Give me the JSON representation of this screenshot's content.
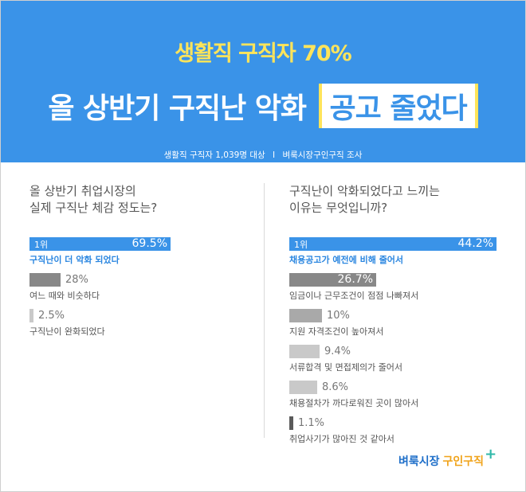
{
  "header": {
    "subtitle": "생활직 구직자 70%",
    "title_main": "올 상반기 구직난 악화",
    "title_highlight": "공고 줄었다",
    "note_left": "생활직 구직자 1,039명 대상",
    "note_sep": "I",
    "note_right": "벼룩시장구인구직 조사"
  },
  "colors": {
    "top_bar": "#3a93e8",
    "dark_bar": "#888888",
    "mid_bar": "#a9a9a9",
    "light_bar": "#c9c9c9",
    "tiny_bar": "#5a5a5a",
    "accent": "#ffe45a"
  },
  "chart_data": [
    {
      "type": "bar",
      "title": "올 상반기 취업시장의 실제 구직난 체감 정도는?",
      "title_lines": [
        "올 상반기 취업시장의",
        "실제 구직난 체감 정도는?"
      ],
      "rank_label": "1위",
      "categories": [
        "구직난이 더 악화 되었다",
        "여느 때와 비슷하다",
        "구직난이 완화되었다"
      ],
      "values": [
        69.5,
        28,
        2.5
      ],
      "value_labels": [
        "69.5%",
        "28%",
        "2.5%"
      ],
      "xlim": [
        0,
        100
      ]
    },
    {
      "type": "bar",
      "title": "구직난이 악화되었다고 느끼는 이유는 무엇입니까?",
      "title_lines": [
        "구직난이 악화되었다고 느끼는",
        "이유는 무엇입니까?"
      ],
      "rank_label": "1위",
      "categories": [
        "채용공고가 예전에 비해 줄어서",
        "임금이나 근무조건이 점점 나빠져서",
        "지원 자격조건이 높아져서",
        "서류합격 및 면접제의가 줄어서",
        "채용절차가 까다로워진 곳이 많아서",
        "취업사기가 많아진 것 같아서"
      ],
      "values": [
        44.2,
        26.7,
        10,
        9.4,
        8.6,
        1.1
      ],
      "value_labels": [
        "44.2%",
        "26.7%",
        "10%",
        "9.4%",
        "8.6%",
        "1.1%"
      ],
      "xlim": [
        0,
        44.2
      ]
    }
  ],
  "logo": {
    "part1": "벼룩시장",
    "part2": "구인구직",
    "plus": "+"
  }
}
